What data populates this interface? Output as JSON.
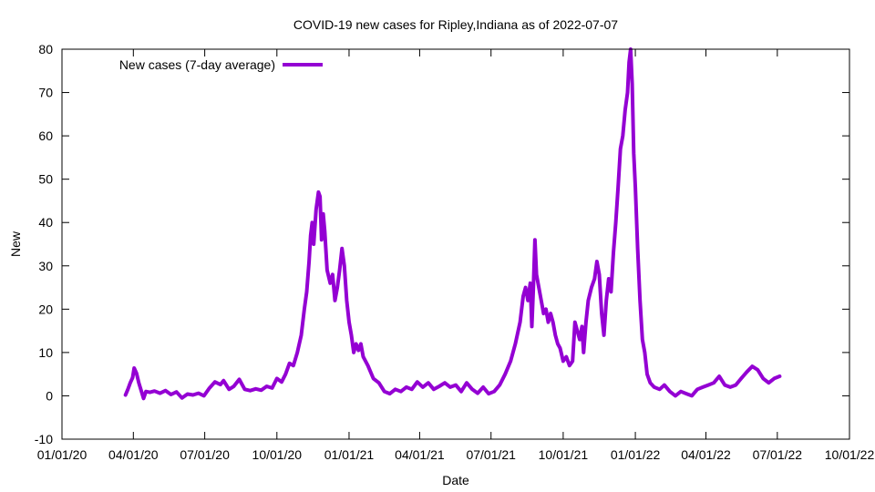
{
  "chart_data": {
    "type": "line",
    "title": "COVID-19 new cases for Ripley,Indiana as of 2022-07-07",
    "xlabel": "Date",
    "ylabel": "New",
    "ylim": [
      -10,
      80
    ],
    "yticks": [
      "-10",
      "0",
      "10",
      "20",
      "30",
      "40",
      "50",
      "60",
      "70",
      "80"
    ],
    "xlim": [
      "2020-01-01",
      "2022-10-01"
    ],
    "xticks": [
      {
        "date": "2020-01-01",
        "label": "01/01/20"
      },
      {
        "date": "2020-04-01",
        "label": "04/01/20"
      },
      {
        "date": "2020-07-01",
        "label": "07/01/20"
      },
      {
        "date": "2020-10-01",
        "label": "10/01/20"
      },
      {
        "date": "2021-01-01",
        "label": "01/01/21"
      },
      {
        "date": "2021-04-01",
        "label": "04/01/21"
      },
      {
        "date": "2021-07-01",
        "label": "07/01/21"
      },
      {
        "date": "2021-10-01",
        "label": "10/01/21"
      },
      {
        "date": "2022-01-01",
        "label": "01/01/22"
      },
      {
        "date": "2022-04-01",
        "label": "04/01/22"
      },
      {
        "date": "2022-07-01",
        "label": "07/01/22"
      },
      {
        "date": "2022-10-01",
        "label": "10/01/22"
      }
    ],
    "grid": false,
    "legend_position": "top-left",
    "series": [
      {
        "name": "New cases (7-day average)",
        "color": "#9400d3",
        "points": [
          [
            "2020-03-22",
            0.2
          ],
          [
            "2020-03-25",
            1.5
          ],
          [
            "2020-03-28",
            3.0
          ],
          [
            "2020-03-31",
            4.2
          ],
          [
            "2020-04-02",
            6.4
          ],
          [
            "2020-04-05",
            5.2
          ],
          [
            "2020-04-08",
            3.0
          ],
          [
            "2020-04-11",
            1.2
          ],
          [
            "2020-04-14",
            -0.6
          ],
          [
            "2020-04-17",
            1.0
          ],
          [
            "2020-04-22",
            0.8
          ],
          [
            "2020-04-28",
            1.1
          ],
          [
            "2020-05-05",
            0.6
          ],
          [
            "2020-05-12",
            1.2
          ],
          [
            "2020-05-19",
            0.3
          ],
          [
            "2020-05-26",
            0.9
          ],
          [
            "2020-06-02",
            -0.5
          ],
          [
            "2020-06-09",
            0.4
          ],
          [
            "2020-06-16",
            0.2
          ],
          [
            "2020-06-23",
            0.6
          ],
          [
            "2020-06-30",
            0.0
          ],
          [
            "2020-07-07",
            1.8
          ],
          [
            "2020-07-14",
            3.2
          ],
          [
            "2020-07-21",
            2.6
          ],
          [
            "2020-07-25",
            3.5
          ],
          [
            "2020-08-01",
            1.5
          ],
          [
            "2020-08-07",
            2.2
          ],
          [
            "2020-08-14",
            3.8
          ],
          [
            "2020-08-21",
            1.5
          ],
          [
            "2020-08-28",
            1.2
          ],
          [
            "2020-09-04",
            1.6
          ],
          [
            "2020-09-11",
            1.3
          ],
          [
            "2020-09-18",
            2.2
          ],
          [
            "2020-09-25",
            1.8
          ],
          [
            "2020-10-01",
            4.0
          ],
          [
            "2020-10-07",
            3.2
          ],
          [
            "2020-10-12",
            5.0
          ],
          [
            "2020-10-17",
            7.5
          ],
          [
            "2020-10-22",
            7.0
          ],
          [
            "2020-10-27",
            10.0
          ],
          [
            "2020-11-01",
            14.0
          ],
          [
            "2020-11-05",
            20.0
          ],
          [
            "2020-11-08",
            24.0
          ],
          [
            "2020-11-11",
            31.0
          ],
          [
            "2020-11-13",
            37.0
          ],
          [
            "2020-11-15",
            40.0
          ],
          [
            "2020-11-17",
            35.0
          ],
          [
            "2020-11-20",
            43.0
          ],
          [
            "2020-11-23",
            47.0
          ],
          [
            "2020-11-25",
            46.0
          ],
          [
            "2020-11-27",
            36.0
          ],
          [
            "2020-11-29",
            42.0
          ],
          [
            "2020-12-01",
            38.0
          ],
          [
            "2020-12-04",
            29.0
          ],
          [
            "2020-12-08",
            26.0
          ],
          [
            "2020-12-11",
            28.0
          ],
          [
            "2020-12-14",
            22.0
          ],
          [
            "2020-12-17",
            25.0
          ],
          [
            "2020-12-20",
            29.0
          ],
          [
            "2020-12-23",
            34.0
          ],
          [
            "2020-12-26",
            30.0
          ],
          [
            "2020-12-29",
            22.0
          ],
          [
            "2021-01-01",
            17.0
          ],
          [
            "2021-01-04",
            14.0
          ],
          [
            "2021-01-07",
            10.0
          ],
          [
            "2021-01-10",
            12.0
          ],
          [
            "2021-01-13",
            10.5
          ],
          [
            "2021-01-16",
            12.0
          ],
          [
            "2021-01-19",
            9.0
          ],
          [
            "2021-01-25",
            7.0
          ],
          [
            "2021-02-01",
            4.0
          ],
          [
            "2021-02-08",
            3.0
          ],
          [
            "2021-02-15",
            1.0
          ],
          [
            "2021-02-22",
            0.5
          ],
          [
            "2021-03-01",
            1.5
          ],
          [
            "2021-03-08",
            1.0
          ],
          [
            "2021-03-15",
            2.0
          ],
          [
            "2021-03-22",
            1.5
          ],
          [
            "2021-03-29",
            3.2
          ],
          [
            "2021-04-05",
            2.0
          ],
          [
            "2021-04-12",
            3.0
          ],
          [
            "2021-04-19",
            1.5
          ],
          [
            "2021-04-26",
            2.2
          ],
          [
            "2021-05-03",
            3.0
          ],
          [
            "2021-05-10",
            2.0
          ],
          [
            "2021-05-17",
            2.5
          ],
          [
            "2021-05-24",
            1.0
          ],
          [
            "2021-05-31",
            3.0
          ],
          [
            "2021-06-07",
            1.5
          ],
          [
            "2021-06-14",
            0.6
          ],
          [
            "2021-06-21",
            2.0
          ],
          [
            "2021-06-28",
            0.5
          ],
          [
            "2021-07-05",
            1.0
          ],
          [
            "2021-07-12",
            2.5
          ],
          [
            "2021-07-19",
            5.0
          ],
          [
            "2021-07-26",
            8.0
          ],
          [
            "2021-08-01",
            12.0
          ],
          [
            "2021-08-07",
            17.0
          ],
          [
            "2021-08-11",
            23.0
          ],
          [
            "2021-08-14",
            25.0
          ],
          [
            "2021-08-17",
            22.0
          ],
          [
            "2021-08-20",
            26.0
          ],
          [
            "2021-08-22",
            16.0
          ],
          [
            "2021-08-24",
            25.0
          ],
          [
            "2021-08-26",
            36.0
          ],
          [
            "2021-08-28",
            28.0
          ],
          [
            "2021-08-31",
            25.0
          ],
          [
            "2021-09-03",
            22.0
          ],
          [
            "2021-09-06",
            19.0
          ],
          [
            "2021-09-09",
            20.0
          ],
          [
            "2021-09-12",
            17.0
          ],
          [
            "2021-09-15",
            19.0
          ],
          [
            "2021-09-18",
            17.0
          ],
          [
            "2021-09-21",
            14.0
          ],
          [
            "2021-09-24",
            12.0
          ],
          [
            "2021-09-27",
            11.0
          ],
          [
            "2021-10-01",
            8.0
          ],
          [
            "2021-10-05",
            9.0
          ],
          [
            "2021-10-09",
            7.0
          ],
          [
            "2021-10-13",
            8.0
          ],
          [
            "2021-10-16",
            17.0
          ],
          [
            "2021-10-19",
            15.0
          ],
          [
            "2021-10-22",
            13.0
          ],
          [
            "2021-10-25",
            16.0
          ],
          [
            "2021-10-27",
            10.0
          ],
          [
            "2021-10-30",
            17.0
          ],
          [
            "2021-11-02",
            22.0
          ],
          [
            "2021-11-06",
            25.0
          ],
          [
            "2021-11-10",
            27.0
          ],
          [
            "2021-11-13",
            31.0
          ],
          [
            "2021-11-16",
            28.0
          ],
          [
            "2021-11-19",
            19.0
          ],
          [
            "2021-11-22",
            14.0
          ],
          [
            "2021-11-25",
            22.0
          ],
          [
            "2021-11-28",
            27.0
          ],
          [
            "2021-12-01",
            24.0
          ],
          [
            "2021-12-04",
            33.0
          ],
          [
            "2021-12-07",
            40.0
          ],
          [
            "2021-12-10",
            48.0
          ],
          [
            "2021-12-13",
            57.0
          ],
          [
            "2021-12-16",
            60.0
          ],
          [
            "2021-12-19",
            66.0
          ],
          [
            "2021-12-22",
            70.0
          ],
          [
            "2021-12-24",
            77.0
          ],
          [
            "2021-12-26",
            80.0
          ],
          [
            "2021-12-28",
            72.0
          ],
          [
            "2021-12-30",
            56.0
          ],
          [
            "2022-01-01",
            48.0
          ],
          [
            "2022-01-04",
            34.0
          ],
          [
            "2022-01-07",
            22.0
          ],
          [
            "2022-01-10",
            13.0
          ],
          [
            "2022-01-13",
            10.0
          ],
          [
            "2022-01-16",
            5.0
          ],
          [
            "2022-01-20",
            3.0
          ],
          [
            "2022-01-25",
            2.0
          ],
          [
            "2022-02-01",
            1.5
          ],
          [
            "2022-02-07",
            2.5
          ],
          [
            "2022-02-14",
            1.0
          ],
          [
            "2022-02-21",
            0.0
          ],
          [
            "2022-02-28",
            1.0
          ],
          [
            "2022-03-07",
            0.5
          ],
          [
            "2022-03-14",
            0.0
          ],
          [
            "2022-03-21",
            1.5
          ],
          [
            "2022-03-28",
            2.0
          ],
          [
            "2022-04-04",
            2.5
          ],
          [
            "2022-04-11",
            3.0
          ],
          [
            "2022-04-18",
            4.5
          ],
          [
            "2022-04-25",
            2.5
          ],
          [
            "2022-05-02",
            2.0
          ],
          [
            "2022-05-09",
            2.5
          ],
          [
            "2022-05-16",
            4.0
          ],
          [
            "2022-05-23",
            5.5
          ],
          [
            "2022-05-30",
            6.8
          ],
          [
            "2022-06-06",
            6.0
          ],
          [
            "2022-06-13",
            4.0
          ],
          [
            "2022-06-20",
            3.0
          ],
          [
            "2022-06-27",
            4.0
          ],
          [
            "2022-07-04",
            4.5
          ]
        ]
      }
    ]
  }
}
